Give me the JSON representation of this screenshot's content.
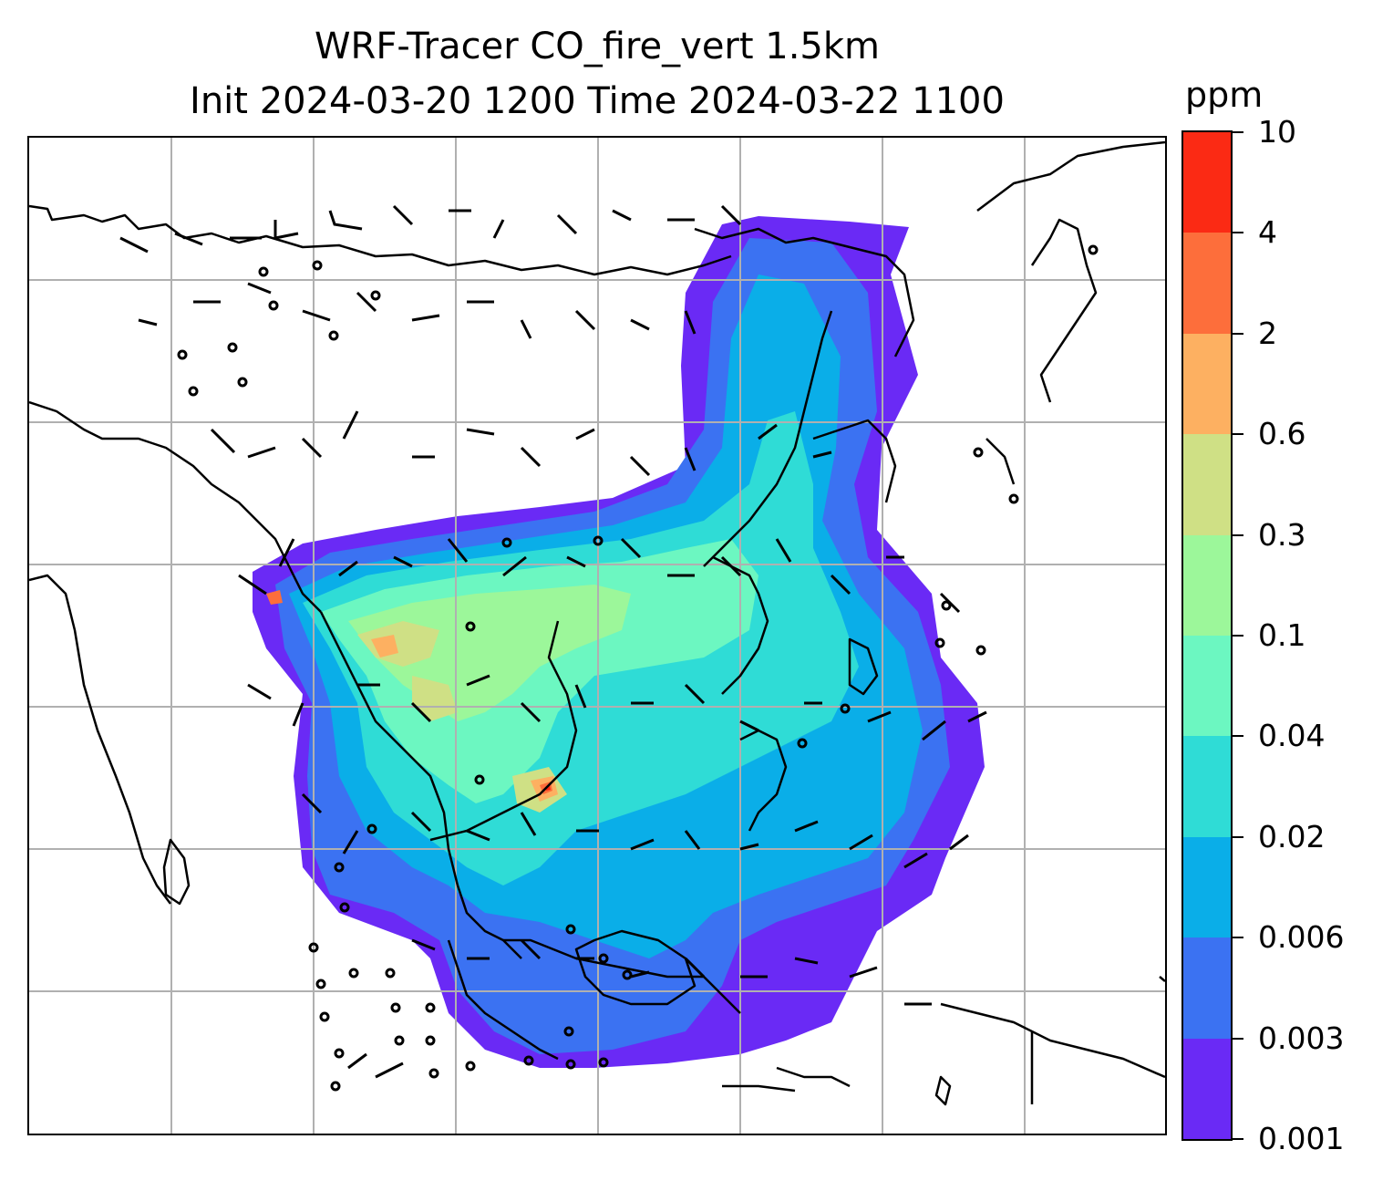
{
  "title": {
    "line1": "WRF-Tracer CO_fire_vert 1.5km",
    "line2": "Init 2024-03-20 1200 Time 2024-03-22 1100"
  },
  "colorbar": {
    "unit": "ppm",
    "tick_labels": [
      "0.001",
      "0.003",
      "0.006",
      "0.02",
      "0.04",
      "0.1",
      "0.3",
      "0.6",
      "2",
      "4",
      "10"
    ],
    "colors": [
      "#6a2af5",
      "#3b72f2",
      "#0aaee8",
      "#2fdcd6",
      "#6cf7c1",
      "#9cf79a",
      "#cfe085",
      "#fdb061",
      "#fd6e3b",
      "#fb2a14"
    ]
  },
  "map": {
    "gridlines": true,
    "gridline_color": "#b0b0b0",
    "coastline_color": "#000000",
    "barb_color": "#000000"
  }
}
